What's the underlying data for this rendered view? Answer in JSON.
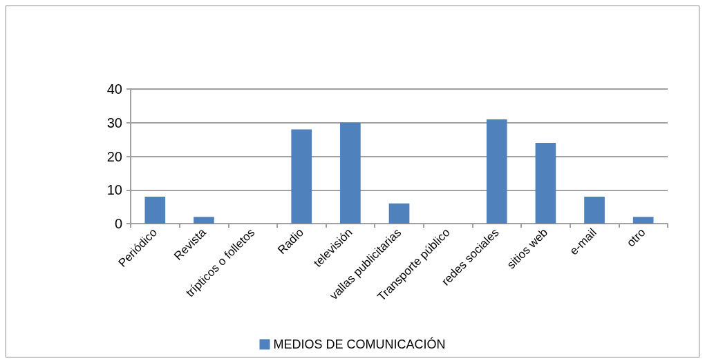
{
  "chart_data": {
    "type": "bar",
    "categories": [
      "Periódico",
      "Revista",
      "trípticos o folletos",
      "Radio",
      "televisión",
      "vallas publicitarias",
      "Transporte público",
      "redes sociales",
      "sitios web",
      "e-mail",
      "otro"
    ],
    "series": [
      {
        "name": "MEDIOS DE COMUNICACIÓN",
        "color": "#4f81bd",
        "values": [
          8,
          2,
          0,
          28,
          30,
          6,
          0,
          31,
          24,
          8,
          2
        ]
      }
    ],
    "ylim": [
      0,
      40
    ],
    "yticks": [
      0,
      10,
      20,
      30,
      40
    ],
    "grid": "y",
    "legend": "bottom"
  }
}
